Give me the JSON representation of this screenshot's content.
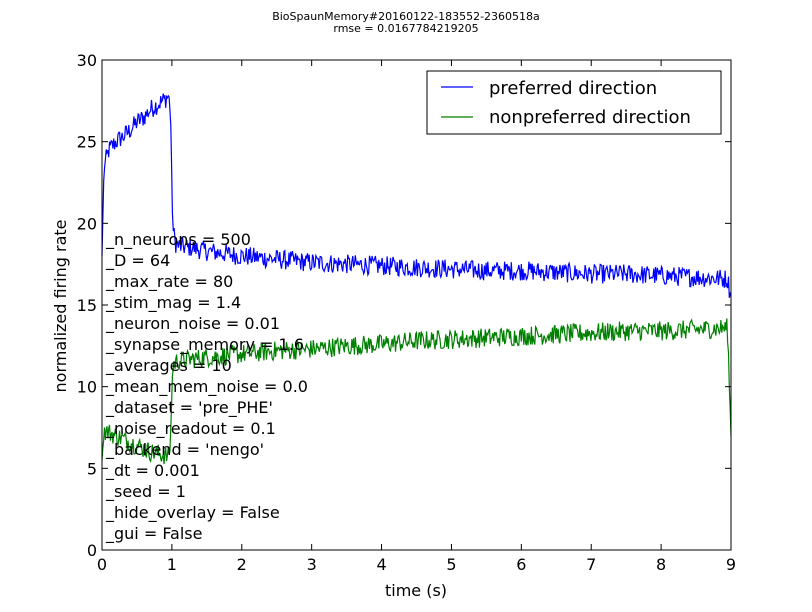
{
  "chart_data": {
    "type": "line",
    "title": "BioSpaunMemory#20160122-183552-2360518a",
    "subtitle": "rmse = 0.0167784219205",
    "xlabel": "time (s)",
    "ylabel": "normalized firing rate",
    "xlim": [
      0,
      9
    ],
    "ylim": [
      0,
      30
    ],
    "xticks": [
      "0",
      "1",
      "2",
      "3",
      "4",
      "5",
      "6",
      "7",
      "8",
      "9"
    ],
    "yticks": [
      "0",
      "5",
      "10",
      "15",
      "20",
      "25",
      "30"
    ],
    "grid": false,
    "legend_position": "top-right",
    "series": [
      {
        "name": "preferred direction",
        "color": "#0000ff",
        "x": [
          0,
          0.03,
          0.1,
          0.2,
          0.3,
          0.4,
          0.5,
          0.6,
          0.7,
          0.8,
          0.9,
          0.95,
          0.98,
          1.0,
          1.02,
          1.05,
          1.1,
          1.3,
          1.5,
          2.0,
          2.5,
          3.0,
          3.5,
          4.0,
          4.5,
          5.0,
          5.5,
          6.0,
          6.5,
          7.0,
          7.5,
          8.0,
          8.5,
          8.95,
          9.0
        ],
        "values": [
          18.0,
          23.5,
          24.5,
          25.0,
          25.3,
          25.7,
          26.2,
          26.5,
          27.0,
          27.3,
          27.6,
          27.8,
          27.0,
          22.0,
          19.5,
          18.8,
          18.6,
          18.5,
          18.3,
          18.0,
          17.8,
          17.6,
          17.5,
          17.4,
          17.3,
          17.2,
          17.1,
          17.1,
          17.0,
          16.9,
          16.9,
          16.8,
          16.7,
          16.6,
          15.5
        ],
        "noise": 0.6
      },
      {
        "name": "nonpreferred direction",
        "color": "#008000",
        "x": [
          0,
          0.03,
          0.1,
          0.2,
          0.3,
          0.4,
          0.5,
          0.6,
          0.7,
          0.8,
          0.9,
          0.95,
          0.98,
          1.0,
          1.02,
          1.05,
          1.1,
          1.3,
          1.5,
          2.0,
          2.5,
          3.0,
          3.5,
          4.0,
          4.5,
          5.0,
          5.5,
          6.0,
          6.5,
          7.0,
          7.5,
          8.0,
          8.5,
          8.95,
          9.0
        ],
        "values": [
          5.5,
          7.3,
          7.2,
          7.0,
          6.8,
          6.6,
          6.4,
          6.2,
          6.0,
          5.9,
          5.8,
          5.7,
          6.5,
          10.0,
          11.3,
          11.5,
          11.6,
          11.7,
          11.8,
          12.0,
          12.2,
          12.3,
          12.5,
          12.6,
          12.8,
          12.9,
          13.0,
          13.1,
          13.2,
          13.3,
          13.4,
          13.4,
          13.5,
          13.6,
          7.0
        ],
        "noise": 0.6
      }
    ],
    "annotations": [
      "_n_neurons = 500",
      "_D = 64",
      "_max_rate = 80",
      "_stim_mag = 1.4",
      "_neuron_noise = 0.01",
      "_synapse_memory = 1.6",
      "_averages = 10",
      "_mean_mem_noise = 0.0",
      "_dataset = 'pre_PHE'",
      "_noise_readout = 0.1",
      "_backend = 'nengo'",
      "_dt = 0.001",
      "_seed = 1",
      "_hide_overlay = False",
      "_gui = False"
    ]
  }
}
